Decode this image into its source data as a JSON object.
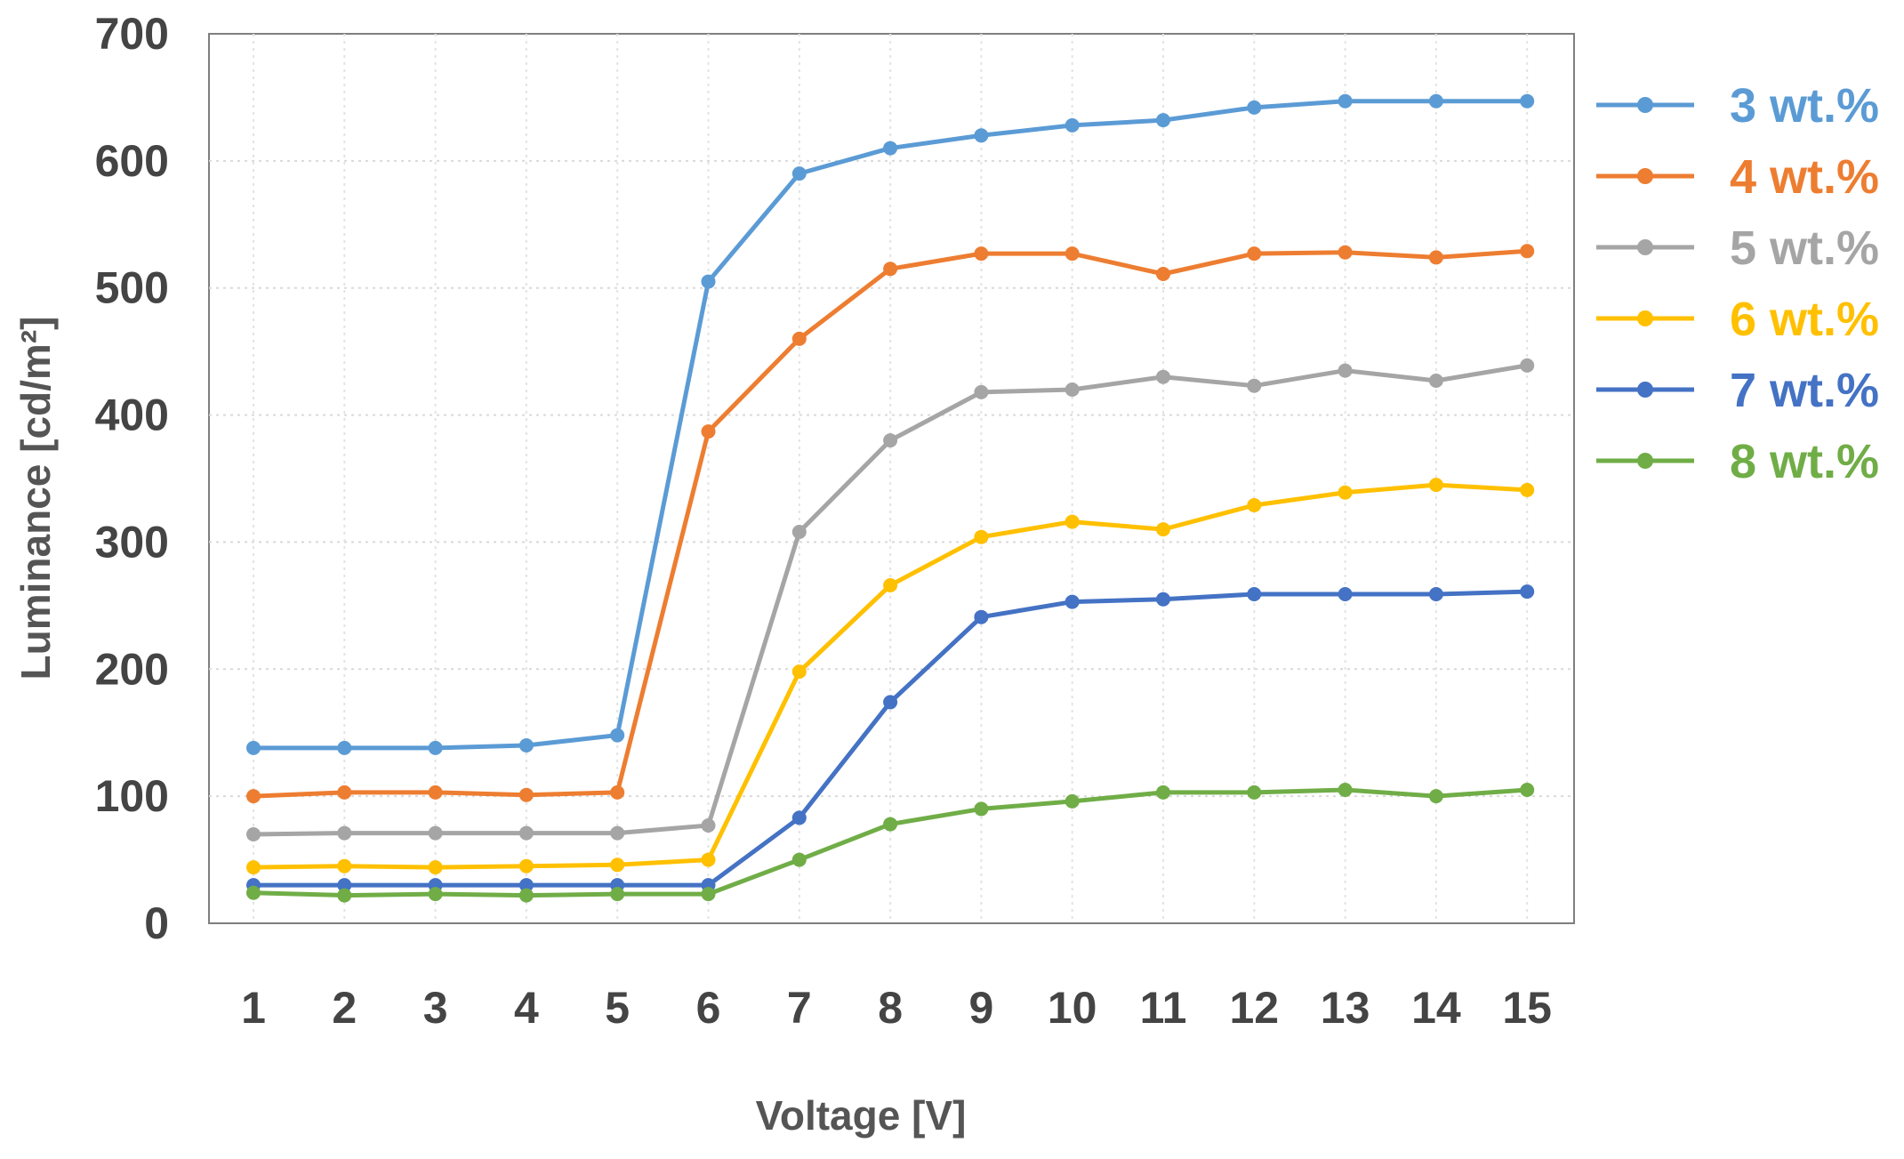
{
  "chart_data": {
    "type": "line",
    "title": "",
    "xlabel": "Voltage [V]",
    "ylabel": "Luminance [cd/m²]",
    "x": [
      1,
      2,
      3,
      4,
      5,
      6,
      7,
      8,
      9,
      10,
      11,
      12,
      13,
      14,
      15
    ],
    "x_tick_labels": [
      "1",
      "2",
      "3",
      "4",
      "5",
      "6",
      "7",
      "8",
      "9",
      "10",
      "11",
      "12",
      "13",
      "14",
      "15"
    ],
    "ylim": [
      0,
      700
    ],
    "y_ticks": [
      0,
      100,
      200,
      300,
      400,
      500,
      600,
      700
    ],
    "y_tick_labels": [
      "0",
      "100",
      "200",
      "300",
      "400",
      "500",
      "600",
      "700"
    ],
    "grid": true,
    "legend_position": "right",
    "series": [
      {
        "name": "3 wt.%",
        "color": "#5b9bd5",
        "values": [
          138,
          138,
          138,
          140,
          148,
          505,
          590,
          610,
          620,
          628,
          632,
          642,
          647,
          647,
          647
        ]
      },
      {
        "name": "4 wt.%",
        "color": "#ed7d31",
        "values": [
          100,
          103,
          103,
          101,
          103,
          387,
          460,
          515,
          527,
          527,
          511,
          527,
          528,
          524,
          529
        ]
      },
      {
        "name": "5 wt.%",
        "color": "#a5a5a5",
        "values": [
          70,
          71,
          71,
          71,
          71,
          77,
          308,
          380,
          418,
          420,
          430,
          423,
          435,
          427,
          439
        ]
      },
      {
        "name": "6 wt.%",
        "color": "#ffc000",
        "values": [
          44,
          45,
          44,
          45,
          46,
          50,
          198,
          266,
          304,
          316,
          310,
          329,
          339,
          345,
          341
        ]
      },
      {
        "name": "7 wt.%",
        "color": "#4472c4",
        "values": [
          30,
          30,
          30,
          30,
          30,
          30,
          83,
          174,
          241,
          253,
          255,
          259,
          259,
          259,
          261
        ]
      },
      {
        "name": "8 wt.%",
        "color": "#70ad47",
        "values": [
          24,
          22,
          23,
          22,
          23,
          23,
          50,
          78,
          90,
          96,
          103,
          103,
          105,
          100,
          105
        ]
      }
    ]
  }
}
